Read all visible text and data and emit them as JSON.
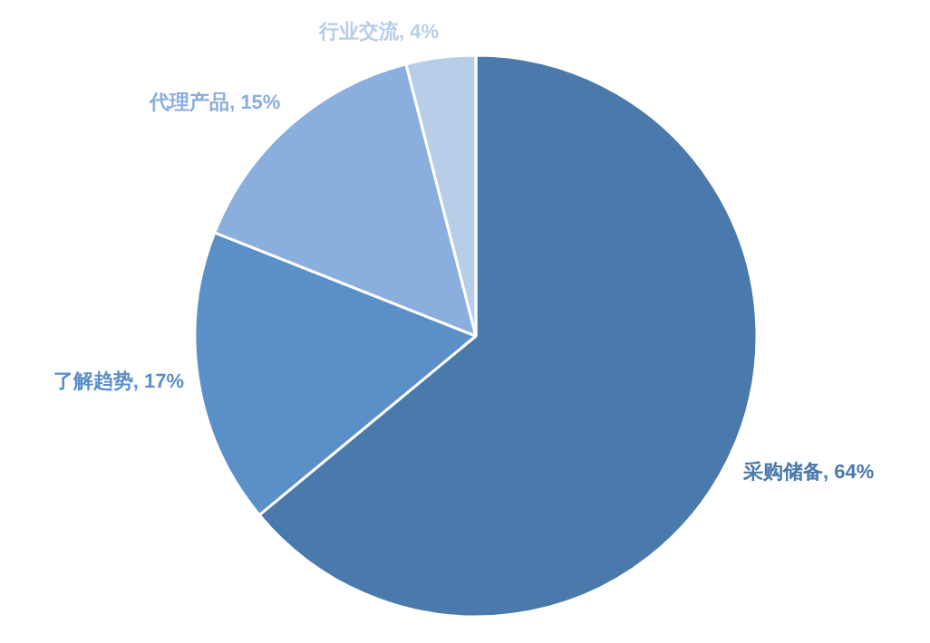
{
  "chart_data": {
    "type": "pie",
    "categories": [
      "采购储备",
      "了解趋势",
      "代理产品",
      "行业交流"
    ],
    "values": [
      64,
      17,
      15,
      4
    ],
    "value_labels": [
      "64%",
      "17%",
      "15%",
      "4%"
    ],
    "colors": [
      "#4a7aab",
      "#5b8fc8",
      "#8aaedd",
      "#b8cde8"
    ],
    "legend": false
  }
}
